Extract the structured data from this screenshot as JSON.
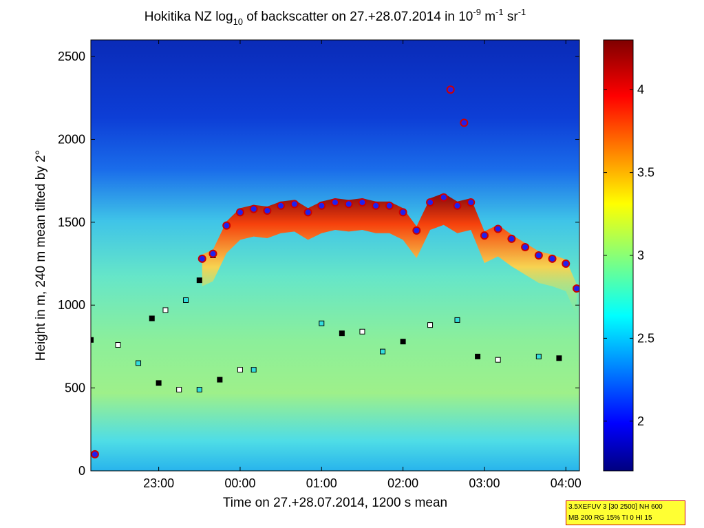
{
  "chart_data": {
    "type": "heatmap",
    "title": "Hokitika NZ log10 of backscatter on 27.+28.07.2014 in 10-9 m-1 sr-1",
    "xlabel": "Time on 27.+28.07.2014, 1200 s mean",
    "ylabel": "Height in m, 240 m mean tilted by 2°",
    "xlim": [
      "22:10",
      "04:10"
    ],
    "ylim": [
      0,
      2600
    ],
    "x_ticks": [
      "23:00",
      "00:00",
      "01:00",
      "02:00",
      "03:00",
      "04:00"
    ],
    "y_ticks": [
      0,
      500,
      1000,
      1500,
      2000,
      2500
    ],
    "colorbar": {
      "min": 1.7,
      "max": 4.3,
      "ticks": [
        2,
        2.5,
        3,
        3.5,
        4
      ],
      "colormap": "jet"
    },
    "cloud_base_top_circles": [
      {
        "x": "23:32",
        "y": 1280
      },
      {
        "x": "23:40",
        "y": 1310
      },
      {
        "x": "23:50",
        "y": 1480
      },
      {
        "x": "00:00",
        "y": 1560
      },
      {
        "x": "00:10",
        "y": 1580
      },
      {
        "x": "00:20",
        "y": 1570
      },
      {
        "x": "00:30",
        "y": 1600
      },
      {
        "x": "00:40",
        "y": 1610
      },
      {
        "x": "00:50",
        "y": 1560
      },
      {
        "x": "01:00",
        "y": 1600
      },
      {
        "x": "01:10",
        "y": 1620
      },
      {
        "x": "01:20",
        "y": 1610
      },
      {
        "x": "01:30",
        "y": 1620
      },
      {
        "x": "01:40",
        "y": 1600
      },
      {
        "x": "01:50",
        "y": 1600
      },
      {
        "x": "02:00",
        "y": 1560
      },
      {
        "x": "02:10",
        "y": 1450
      },
      {
        "x": "02:20",
        "y": 1620
      },
      {
        "x": "02:30",
        "y": 1650
      },
      {
        "x": "02:40",
        "y": 1600
      },
      {
        "x": "02:50",
        "y": 1620
      },
      {
        "x": "03:00",
        "y": 1420
      },
      {
        "x": "03:10",
        "y": 1460
      },
      {
        "x": "03:20",
        "y": 1400
      },
      {
        "x": "03:30",
        "y": 1350
      },
      {
        "x": "03:40",
        "y": 1300
      },
      {
        "x": "03:50",
        "y": 1280
      },
      {
        "x": "04:00",
        "y": 1250
      },
      {
        "x": "04:08",
        "y": 1100
      },
      {
        "x": "02:35",
        "y": 2300
      },
      {
        "x": "02:45",
        "y": 2100
      },
      {
        "x": "22:13",
        "y": 100
      }
    ],
    "boundary_layer_squares": [
      {
        "x": "22:10",
        "y": 790
      },
      {
        "x": "22:30",
        "y": 760
      },
      {
        "x": "22:45",
        "y": 650
      },
      {
        "x": "23:00",
        "y": 530
      },
      {
        "x": "23:15",
        "y": 490
      },
      {
        "x": "23:30",
        "y": 490
      },
      {
        "x": "23:45",
        "y": 550
      },
      {
        "x": "00:00",
        "y": 610
      },
      {
        "x": "00:10",
        "y": 610
      },
      {
        "x": "22:55",
        "y": 920
      },
      {
        "x": "23:05",
        "y": 970
      },
      {
        "x": "23:20",
        "y": 1030
      },
      {
        "x": "23:30",
        "y": 1150
      },
      {
        "x": "23:40",
        "y": 1300
      },
      {
        "x": "01:00",
        "y": 890
      },
      {
        "x": "01:15",
        "y": 830
      },
      {
        "x": "01:30",
        "y": 840
      },
      {
        "x": "01:45",
        "y": 720
      },
      {
        "x": "02:00",
        "y": 780
      },
      {
        "x": "02:20",
        "y": 880
      },
      {
        "x": "02:40",
        "y": 910
      },
      {
        "x": "02:55",
        "y": 690
      },
      {
        "x": "03:10",
        "y": 670
      },
      {
        "x": "03:40",
        "y": 690
      },
      {
        "x": "03:55",
        "y": 680
      }
    ]
  },
  "info_box": {
    "line1": "3.5XEFUV 3 [30 2500] NH 600",
    "line2": "MB 200 RG 15% TI 0 HI 15"
  },
  "title_parts": {
    "prefix": "Hokitika NZ log",
    "sub": "10",
    "mid": " of backscatter on 27.+28.07.2014 in 10",
    "exp1": "-9",
    "m": " m",
    "exp2": "-1",
    "sr": " sr",
    "exp3": "-1"
  },
  "colors": {
    "background": "#ffffff",
    "circle_fill": "#2020ee",
    "circle_stroke": "#cc0000",
    "square_black": "#000000",
    "square_cyan": "#33dddd",
    "square_white": "#ffffff",
    "square_red": "#cc1100"
  }
}
